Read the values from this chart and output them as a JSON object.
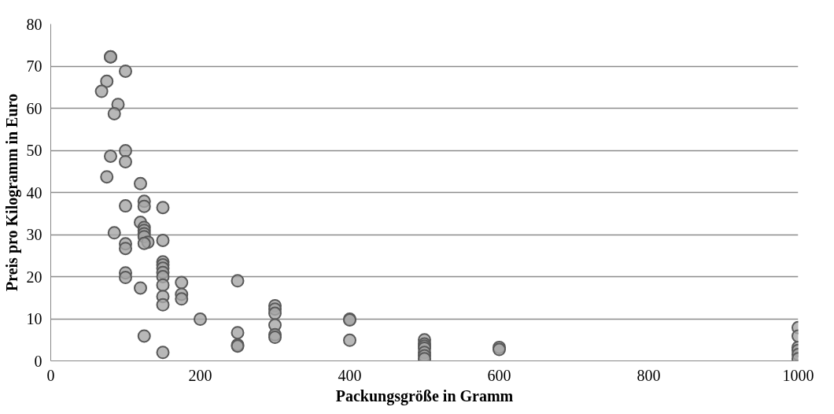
{
  "chart_data": {
    "type": "scatter",
    "xlabel": "Packungsgröße in Gramm",
    "ylabel": "Preis pro Kilogramm in Euro",
    "xlim": [
      0,
      1000
    ],
    "xticks": [
      0,
      200,
      400,
      600,
      800,
      1000
    ],
    "ylim": [
      0,
      80
    ],
    "yticks": [
      0,
      10,
      20,
      30,
      40,
      50,
      60,
      70,
      80
    ],
    "grid": "y",
    "marker": "circle",
    "series": [
      {
        "color": "#a6a6a6",
        "x": [
          80,
          80,
          75,
          100,
          68,
          90,
          85,
          80,
          100,
          100,
          75,
          120,
          100,
          125,
          125,
          150,
          85,
          120,
          125,
          125,
          125,
          125,
          130,
          125,
          150,
          100,
          100,
          150,
          150,
          150,
          150,
          150,
          150,
          150,
          150,
          100,
          100,
          120,
          125,
          150,
          175,
          175,
          175,
          200,
          250,
          250,
          250,
          250,
          300,
          300,
          300,
          300,
          300,
          300,
          400,
          400,
          400,
          500,
          500,
          500,
          500,
          500,
          500,
          500,
          600,
          600,
          1000,
          1000,
          1000,
          1000,
          1000,
          1000
        ],
        "values": [
          72.2,
          72.2,
          66.4,
          68.8,
          64,
          60.9,
          58.7,
          48.6,
          49.9,
          47.3,
          43.7,
          42.1,
          36.8,
          37.9,
          36.7,
          36.4,
          30.4,
          32.9,
          31.7,
          31,
          30.2,
          29.5,
          28.2,
          27.9,
          28.6,
          27.8,
          26.7,
          23.5,
          22.8,
          22,
          21,
          20,
          18,
          15.3,
          13.3,
          20.9,
          19.8,
          17.3,
          5.9,
          2,
          18.6,
          15.8,
          14.7,
          9.9,
          19,
          6.7,
          3.8,
          3.5,
          13.1,
          12.3,
          11.3,
          8.5,
          6.2,
          5.6,
          9.9,
          9.7,
          4.9,
          5,
          4,
          3.5,
          3,
          2,
          1.2,
          0.5,
          3.2,
          2.7,
          7.9,
          5.9,
          3.2,
          2.5,
          1.5,
          0.5
        ]
      }
    ]
  }
}
